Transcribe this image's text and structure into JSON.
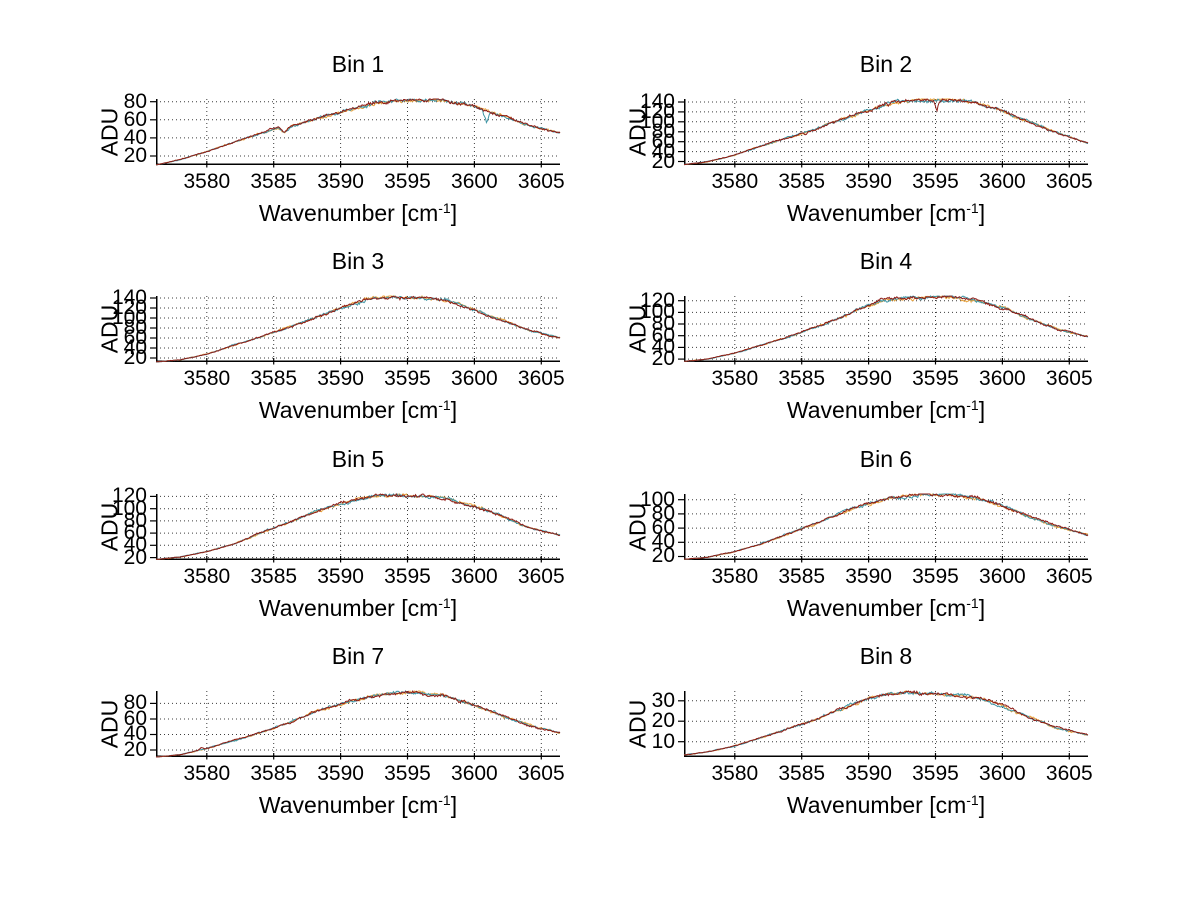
{
  "figure": {
    "background": "#ffffff",
    "y_axis_label": "ADU",
    "x_axis_label": {
      "text": "Wavenumber [cm",
      "sup": "-1",
      "close": "]"
    },
    "x_ticks": [
      3580,
      3585,
      3590,
      3595,
      3600,
      3605
    ],
    "xlim": [
      3576.2,
      3606.4
    ],
    "grid": "dotted",
    "legend": "none",
    "colors": {
      "axis": "#000000",
      "grid_dot": "#3c3c3c",
      "series": [
        "#E8A23C",
        "#3D95A5",
        "#8E1B15"
      ]
    }
  },
  "chart_data": [
    {
      "type": "line",
      "title": "Bin 1",
      "ylim": [
        10,
        83
      ],
      "y_ticks": [
        20,
        40,
        60,
        80
      ],
      "x_anchors": [
        3576.2,
        3578,
        3580,
        3582,
        3584,
        3585.3,
        3585.8,
        3586.3,
        3588,
        3590,
        3592,
        3594,
        3596,
        3597,
        3598,
        3600,
        3602,
        3604,
        3606.4
      ],
      "y_anchors": [
        10,
        16,
        25,
        35,
        45,
        51,
        46,
        53,
        61,
        69,
        77,
        81,
        82.5,
        82,
        81,
        75,
        65,
        54,
        45
      ],
      "spikes": [
        {
          "x": 3600.9,
          "d": 13,
          "w": 0.3,
          "s": 1
        }
      ],
      "noise": 2.2,
      "seed": 11
    },
    {
      "type": "line",
      "title": "Bin 2",
      "ylim": [
        13,
        146
      ],
      "y_ticks": [
        20,
        40,
        60,
        80,
        100,
        120,
        140
      ],
      "x_anchors": [
        3576.2,
        3578,
        3580,
        3582,
        3584,
        3586,
        3588,
        3590,
        3591,
        3592,
        3593,
        3594,
        3595,
        3596,
        3597,
        3598,
        3600,
        3602,
        3604,
        3606.4
      ],
      "y_anchors": [
        14,
        20,
        33,
        52,
        68,
        85,
        105,
        124,
        133,
        140,
        143,
        145,
        144,
        145,
        142,
        138,
        122,
        100,
        78,
        57
      ],
      "spikes": [
        {
          "x": 3595.1,
          "d": 22,
          "w": 0.25,
          "s": 2
        },
        {
          "x": 3585.3,
          "d": 6,
          "w": 0.25,
          "s": 2
        },
        {
          "x": 3591.5,
          "d": 7,
          "w": 0.2,
          "s": 2
        }
      ],
      "noise": 4.0,
      "seed": 22
    },
    {
      "type": "line",
      "title": "Bin 3",
      "ylim": [
        12,
        144
      ],
      "y_ticks": [
        20,
        40,
        60,
        80,
        100,
        120,
        140
      ],
      "x_anchors": [
        3576.2,
        3578,
        3580,
        3582,
        3584,
        3586,
        3588,
        3590,
        3591,
        3592,
        3593,
        3594,
        3595,
        3596,
        3597,
        3598,
        3600,
        3602,
        3604,
        3606.4
      ],
      "y_anchors": [
        12,
        16,
        28,
        45,
        62,
        80,
        100,
        118,
        128,
        136,
        141,
        143,
        140,
        141,
        140,
        134,
        116,
        96,
        76,
        60
      ],
      "spikes": [],
      "noise": 4.0,
      "seed": 33
    },
    {
      "type": "line",
      "title": "Bin 4",
      "ylim": [
        15,
        128
      ],
      "y_ticks": [
        20,
        40,
        60,
        80,
        100,
        120
      ],
      "x_anchors": [
        3576.2,
        3578,
        3580,
        3582,
        3584,
        3586,
        3588,
        3590,
        3591,
        3592,
        3593,
        3594,
        3595,
        3596,
        3597,
        3598,
        3600,
        3602,
        3604,
        3606.4
      ],
      "y_anchors": [
        16,
        20,
        30,
        44,
        58,
        74,
        92,
        112,
        120,
        122,
        124,
        126,
        127,
        126,
        124,
        120,
        108,
        90,
        72,
        58
      ],
      "spikes": [],
      "noise": 3.4,
      "seed": 44
    },
    {
      "type": "line",
      "title": "Bin 5",
      "ylim": [
        16,
        124
      ],
      "y_ticks": [
        20,
        40,
        60,
        80,
        100,
        120
      ],
      "x_anchors": [
        3576.2,
        3578,
        3580,
        3582,
        3584,
        3586,
        3588,
        3590,
        3591,
        3592,
        3593,
        3594,
        3595,
        3596,
        3597,
        3598,
        3600,
        3602,
        3604,
        3606.4
      ],
      "y_anchors": [
        17,
        21,
        30,
        42,
        60,
        76,
        94,
        108,
        114,
        118,
        122,
        121,
        120,
        121,
        119,
        116,
        104,
        88,
        70,
        56
      ],
      "spikes": [],
      "noise": 3.2,
      "seed": 55
    },
    {
      "type": "line",
      "title": "Bin 6",
      "ylim": [
        15,
        108
      ],
      "y_ticks": [
        20,
        40,
        60,
        80,
        100
      ],
      "x_anchors": [
        3576.2,
        3578,
        3580,
        3582,
        3584,
        3586,
        3588,
        3590,
        3591,
        3592,
        3593,
        3594,
        3595,
        3596,
        3597,
        3598,
        3600,
        3602,
        3604,
        3606.4
      ],
      "y_anchors": [
        16,
        19,
        27,
        38,
        52,
        66,
        82,
        95,
        100,
        103,
        105,
        107,
        106,
        107,
        105,
        102,
        92,
        76,
        62,
        50
      ],
      "spikes": [],
      "noise": 2.8,
      "seed": 66
    },
    {
      "type": "line",
      "title": "Bin 7",
      "ylim": [
        11,
        96
      ],
      "y_ticks": [
        20,
        40,
        60,
        80
      ],
      "x_anchors": [
        3576.2,
        3578,
        3580,
        3582,
        3584,
        3586,
        3588,
        3590,
        3591,
        3592,
        3593,
        3594,
        3595,
        3596,
        3597,
        3598,
        3600,
        3602,
        3604,
        3606.4
      ],
      "y_anchors": [
        11,
        14,
        22,
        32,
        42,
        54,
        68,
        79,
        84,
        88,
        91,
        93,
        94.5,
        93,
        91,
        88,
        78,
        64,
        52,
        42
      ],
      "spikes": [
        {
          "x": 3579.6,
          "d": -3,
          "w": 0.25,
          "s": 2
        }
      ],
      "noise": 2.6,
      "seed": 77
    },
    {
      "type": "line",
      "title": "Bin 8",
      "ylim": [
        2.5,
        34.8
      ],
      "y_ticks": [
        10,
        20,
        30
      ],
      "x_anchors": [
        3576.2,
        3578,
        3580,
        3582,
        3584,
        3586,
        3588,
        3590,
        3591,
        3592,
        3593,
        3594,
        3595,
        3596,
        3597,
        3598,
        3600,
        3602,
        3604,
        3606.4
      ],
      "y_anchors": [
        3.5,
        5,
        8,
        12,
        16.5,
        21,
        26,
        31,
        32.5,
        33.5,
        34,
        33.5,
        33.5,
        33,
        32.5,
        31.5,
        27.5,
        22,
        17,
        13
      ],
      "spikes": [],
      "noise": 1.0,
      "seed": 88
    }
  ]
}
